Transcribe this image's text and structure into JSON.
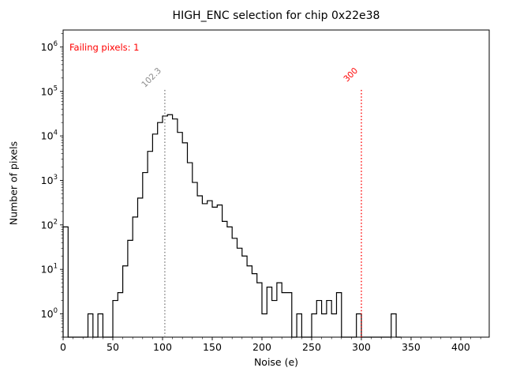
{
  "figure": {
    "title": "HIGH_ENC selection for chip 0x22e38",
    "xlabel": "Noise (e)",
    "ylabel": "Number of pixels",
    "annotation": {
      "text": "Failing pixels: 1",
      "color": "#ff0000"
    }
  },
  "chart_data": {
    "type": "histogram",
    "render_style": "step",
    "title": "HIGH_ENC selection for chip 0x22e38",
    "xlabel": "Noise (e)",
    "ylabel": "Number of pixels",
    "x_scale": "linear",
    "y_scale": "log",
    "xlim": [
      0,
      428.6
    ],
    "ylim": [
      0.3,
      2400000
    ],
    "xticks": [
      0,
      50,
      100,
      150,
      200,
      250,
      300,
      350,
      400
    ],
    "ytick_exponents": [
      0,
      1,
      2,
      3,
      4,
      5,
      6
    ],
    "grid": false,
    "legend": "none",
    "series_color": "#000000",
    "bin_start": 0,
    "bin_width": 5,
    "counts": [
      90,
      0,
      0,
      0,
      0,
      1,
      0,
      1,
      0,
      0,
      2,
      3,
      12,
      45,
      150,
      400,
      1500,
      4500,
      11000,
      20000,
      28000,
      30000,
      24000,
      12000,
      7000,
      2500,
      900,
      450,
      300,
      350,
      250,
      280,
      120,
      90,
      50,
      30,
      20,
      12,
      8,
      5,
      1,
      4,
      2,
      5,
      3,
      3,
      0,
      1,
      0,
      0,
      1,
      2,
      1,
      2,
      1,
      3,
      0,
      0,
      0,
      1,
      0,
      0,
      0,
      0,
      0,
      0,
      1,
      0
    ],
    "vlines": [
      {
        "x": 102.3,
        "label": "102.3",
        "color": "#808080",
        "label_color": "#8c8c8c"
      },
      {
        "x": 300,
        "label": "300",
        "color": "#ff0000",
        "label_color": "#ff0000"
      }
    ],
    "annotations": [
      {
        "text": "Failing pixels: 1",
        "color": "#ff0000",
        "position": "top-left"
      }
    ]
  }
}
